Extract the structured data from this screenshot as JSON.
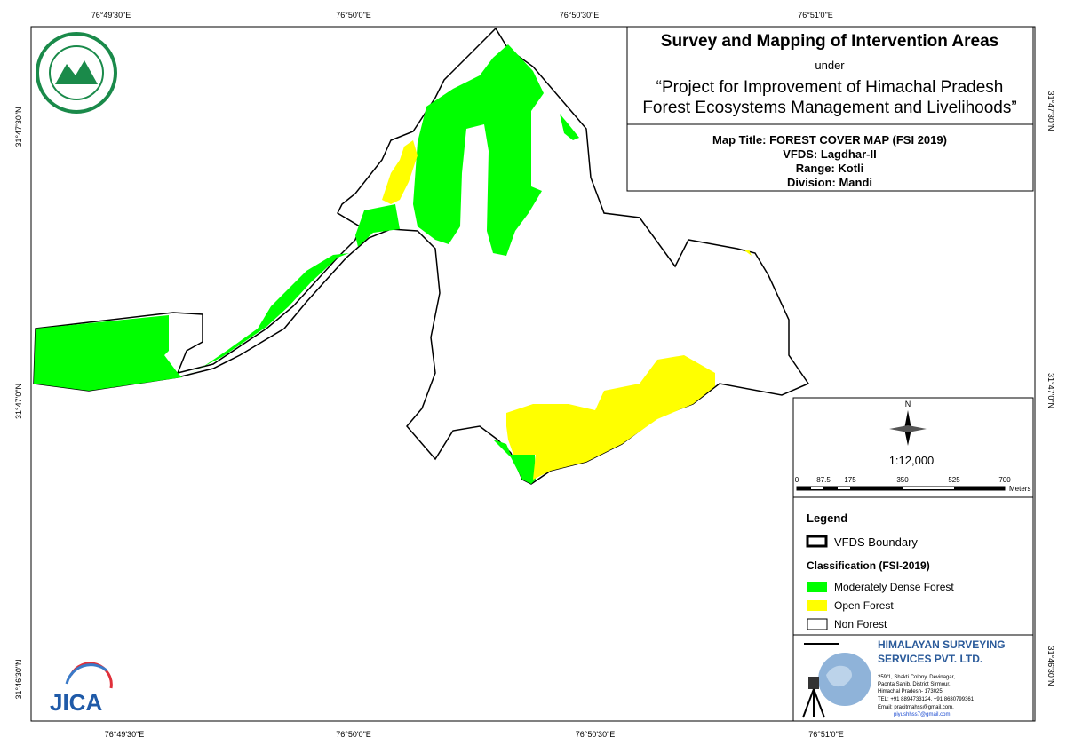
{
  "coordinates": {
    "top": [
      "76°49'30\"E",
      "76°50'0\"E",
      "76°50'30\"E",
      "76°51'0\"E"
    ],
    "bottom": [
      "76°49'30\"E",
      "76°50'0\"E",
      "76°50'30\"E",
      "76°51'0\"E"
    ],
    "left": [
      "31°47'30\"N",
      "31°47'0\"N",
      "31°46'30\"N"
    ],
    "right": [
      "31°47'30\"N",
      "31°47'0\"N",
      "31°46'30\"N"
    ]
  },
  "header": {
    "title": "Survey and Mapping of Intervention Areas",
    "under": "under",
    "project_line1": "“Project for Improvement of Himachal Pradesh",
    "project_line2": "Forest Ecosystems Management and Livelihoods”"
  },
  "map_info": {
    "map_title": "Map Title: FOREST COVER MAP (FSI 2019)",
    "vfds": "VFDS: Lagdhar-II",
    "range": "Range: Kotli",
    "division": "Division: Mandi"
  },
  "north": "N",
  "scale": {
    "ratio": "1:12,000",
    "labels": [
      "0",
      "87.5",
      "175",
      "350",
      "525",
      "700"
    ],
    "unit": "Meters"
  },
  "legend": {
    "title": "Legend",
    "boundary": "VFDS Boundary",
    "classification": "Classification (FSI-2019)",
    "items": [
      "Moderately Dense Forest",
      "Open Forest",
      "Non Forest"
    ]
  },
  "company": {
    "name_line1": "HIMALAYAN SURVEYING",
    "name_line2": "SERVICES PVT. LTD.",
    "address": [
      "259/1, Shakti Colony, Devinagar,",
      "Paonta Sahib, District Sirmour,",
      "Himachal Pradesh- 173025",
      "TEL: +91 8894733124, +91 8630799361",
      "Email: pracitmahss@gmail.com,",
      "piyushhss7@gmail.com"
    ]
  },
  "logo": "JICA"
}
